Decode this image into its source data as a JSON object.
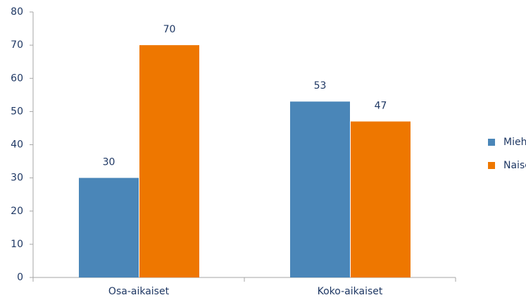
{
  "chart_data": {
    "type": "bar",
    "categories": [
      "Osa-aikaiset",
      "Koko-aikaiset"
    ],
    "series": [
      {
        "name": "Miehet",
        "color": "#4a86b8",
        "values": [
          30,
          53
        ]
      },
      {
        "name": "Naiset",
        "color": "#ee7700",
        "values": [
          70,
          47
        ]
      }
    ],
    "ylim": [
      0,
      80
    ],
    "yticks": [
      0,
      10,
      20,
      30,
      40,
      50,
      60,
      70,
      80
    ],
    "grid": false,
    "legend": "right"
  }
}
